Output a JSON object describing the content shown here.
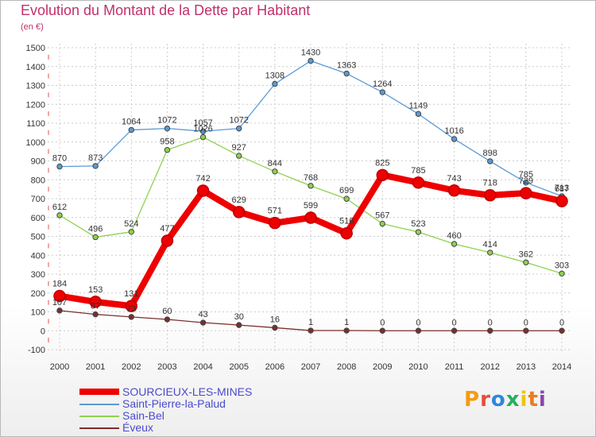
{
  "title": "Evolution du Montant de la Dette par Habitant",
  "subtitle": "(en €)",
  "logo": "Proxiti",
  "colors": {
    "title": "#c0306a",
    "legend_text": "#4a4acd",
    "grid": "#cccccc",
    "axis_marks": "#e05050"
  },
  "chart_data": {
    "type": "line",
    "title": "Evolution du Montant de la Dette par Habitant",
    "subtitle": "(en €)",
    "xlabel": "",
    "ylabel": "",
    "x": [
      "2000",
      "2001",
      "2002",
      "2003",
      "2004",
      "2005",
      "2006",
      "2007",
      "2008",
      "2009",
      "2010",
      "2011",
      "2012",
      "2013",
      "2014"
    ],
    "ylim": [
      -100,
      1500
    ],
    "yticks": [
      -100,
      0,
      100,
      200,
      300,
      400,
      500,
      600,
      700,
      800,
      900,
      1000,
      1100,
      1200,
      1300,
      1400,
      1500
    ],
    "grid": true,
    "legend": "bottom-left",
    "series": [
      {
        "name": "SOURCIEUX-LES-MINES",
        "color": "#ee0000",
        "values": [
          184,
          153,
          131,
          477,
          742,
          629,
          571,
          599,
          516,
          825,
          785,
          743,
          718,
          729,
          687
        ],
        "labels": [
          "184",
          "153",
          "131",
          "477",
          "742",
          "629",
          "571",
          "599",
          "516",
          "825",
          "785",
          "743",
          "718",
          "729",
          "687"
        ]
      },
      {
        "name": "Saint-Pierre-la-Palud",
        "color": "#5b9bd5",
        "values": [
          870,
          873,
          1064,
          1072,
          1057,
          1072,
          1308,
          1430,
          1363,
          1264,
          1149,
          1016,
          898,
          785,
          713
        ],
        "labels": [
          "870",
          "873",
          "1064",
          "1072",
          "1057",
          "1072",
          "1308",
          "1430",
          "1363",
          "1264",
          "1149",
          "1016",
          "898",
          "785",
          "713"
        ]
      },
      {
        "name": "Sain-Bel",
        "color": "#8fd14f",
        "values": [
          612,
          496,
          524,
          958,
          1026,
          927,
          844,
          768,
          699,
          567,
          523,
          460,
          414,
          362,
          303
        ],
        "labels": [
          "612",
          "496",
          "524",
          "958",
          "1026",
          "927",
          "844",
          "768",
          "699",
          "567",
          "523",
          "460",
          "414",
          "362",
          "303"
        ]
      },
      {
        "name": "Éveux",
        "color": "#7a2e2e",
        "values": [
          107,
          87,
          73,
          60,
          43,
          30,
          16,
          1,
          1,
          0,
          0,
          0,
          0,
          0,
          0
        ],
        "labels": [
          "107",
          "87",
          "73",
          "60",
          "43",
          "30",
          "16",
          "1",
          "1",
          "0",
          "0",
          "0",
          "0",
          "0",
          "0"
        ]
      }
    ]
  }
}
